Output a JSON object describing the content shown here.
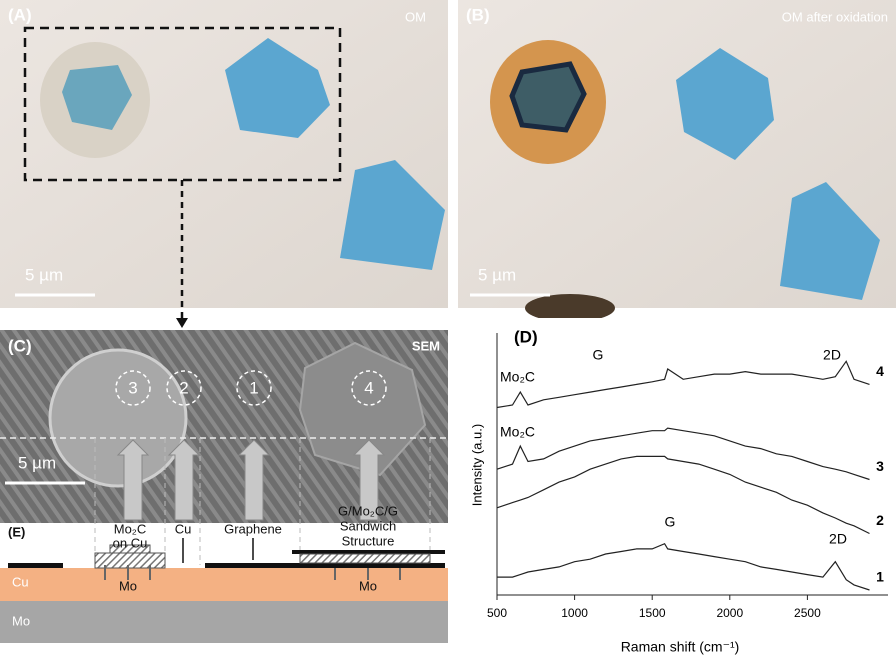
{
  "panel_a": {
    "label": "(A)",
    "caption": "OM",
    "scale_bar": "5 µm"
  },
  "panel_b": {
    "label": "(B)",
    "caption": "OM after oxidation",
    "scale_bar": "5 µm"
  },
  "panel_c": {
    "label": "(C)",
    "caption": "SEM",
    "scale_bar": "5 µm",
    "markers": [
      "3",
      "2",
      "1",
      "4"
    ]
  },
  "panel_e": {
    "label": "(E)",
    "columns": [
      [
        "Mo₂C",
        "on Cu"
      ],
      [
        "Cu"
      ],
      [
        "Graphene"
      ],
      [
        "G/Mo₂C/G",
        "Sandwich",
        "Structure"
      ]
    ],
    "layers": [
      "Cu",
      "Mo"
    ],
    "diffusion_labels": [
      "Mo",
      "Mo"
    ]
  },
  "chart_data": {
    "type": "line",
    "panel_label": "(D)",
    "xlabel": "Raman shift (cm⁻¹)",
    "ylabel": "Intensity (a.u.)",
    "x": [
      500,
      600,
      650,
      700,
      800,
      900,
      1000,
      1100,
      1200,
      1300,
      1400,
      1500,
      1580,
      1600,
      1700,
      1800,
      1900,
      2000,
      2100,
      2200,
      2300,
      2400,
      2500,
      2600,
      2680,
      2750,
      2800,
      2900
    ],
    "series": [
      {
        "name": "4",
        "color": "#222222",
        "values": [
          71,
          72,
          77,
          72,
          74,
          75,
          76,
          77,
          78,
          79,
          80,
          81,
          82,
          86,
          82,
          83,
          84,
          84,
          85,
          84,
          84,
          84,
          83,
          82,
          83,
          89,
          82,
          80
        ]
      },
      {
        "name": "3",
        "color": "#222222",
        "values": [
          47,
          49,
          56,
          50,
          51,
          54,
          56,
          58,
          59,
          60,
          61,
          62,
          62,
          63,
          62,
          61,
          60,
          58,
          56,
          55,
          53,
          52,
          50,
          48,
          47,
          46,
          45,
          43
        ]
      },
      {
        "name": "2",
        "color": "#222222",
        "values": [
          32,
          34,
          35,
          36,
          39,
          42,
          44,
          47,
          49,
          51,
          52,
          52,
          52,
          51,
          50,
          49,
          47,
          45,
          42,
          40,
          38,
          35,
          33,
          30,
          28,
          26,
          25,
          22
        ]
      },
      {
        "name": "1",
        "color": "#222222",
        "values": [
          5,
          5,
          6,
          7,
          8,
          9,
          11,
          12,
          14,
          15,
          16,
          16,
          18,
          16,
          15,
          14,
          13,
          12,
          11,
          9,
          8,
          7,
          6,
          5,
          11,
          4,
          2,
          0
        ]
      }
    ],
    "annotations": [
      "Mo₂C",
      "G",
      "2D",
      "Mo₂C",
      "G",
      "2D"
    ],
    "xlim": [
      500,
      3000
    ],
    "ylim": [
      0,
      100
    ],
    "xticks": [
      500,
      1000,
      1500,
      2000,
      2500
    ]
  }
}
